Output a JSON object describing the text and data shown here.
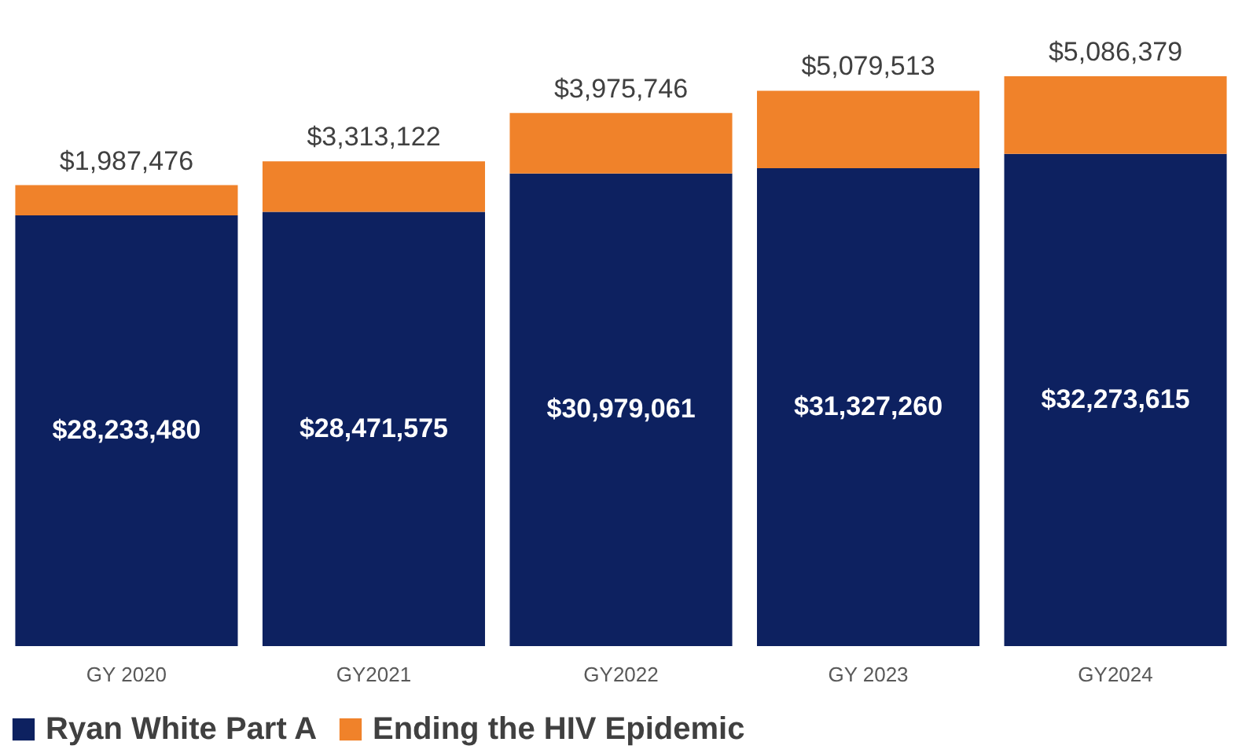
{
  "chart_data": {
    "type": "bar",
    "stacked": true,
    "legend": "bottom",
    "grid": false,
    "categories": [
      "GY 2020",
      "GY2021",
      "GY2022",
      "GY 2023",
      "GY2024"
    ],
    "series": [
      {
        "name": "Ryan White Part A",
        "color": "#0d2160",
        "values": [
          28233480,
          28471575,
          30979061,
          31327260,
          32273615
        ],
        "value_labels": [
          "$28,233,480",
          "$28,471,575",
          "$30,979,061",
          "$31,327,260",
          "$32,273,615"
        ]
      },
      {
        "name": "Ending the HIV Epidemic",
        "color": "#f0822a",
        "values": [
          1987476,
          3313122,
          3975746,
          5079513,
          5086379
        ],
        "value_labels": [
          "$1,987,476",
          "$3,313,122",
          "$3,975,746",
          "$5,079,513",
          "$5,086,379"
        ]
      }
    ]
  }
}
